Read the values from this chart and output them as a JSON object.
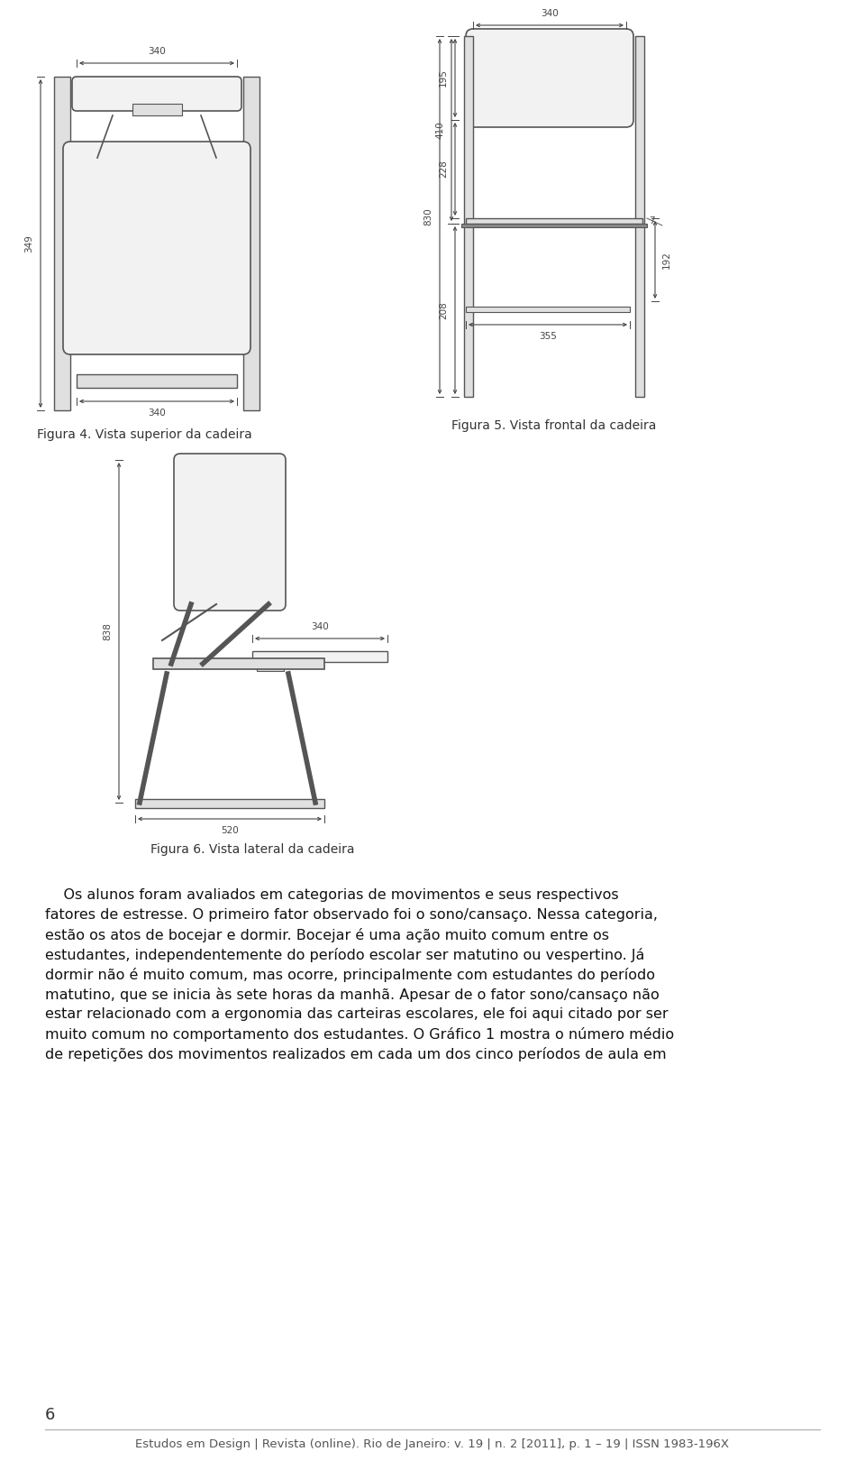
{
  "background_color": "#ffffff",
  "page_width": 9.6,
  "page_height": 16.3,
  "fig4_caption": "Figura 4. Vista superior da cadeira",
  "fig5_caption": "Figura 5. Vista frontal da cadeira",
  "fig6_caption": "Figura 6. Vista lateral da cadeira",
  "page_number": "6",
  "footer_text": "Estudos em Design | Revista (online). Rio de Janeiro: v. 19 | n. 2 [2011], p. 1 – 19 | ISSN 1983-196X",
  "body_lines": [
    "    Os alunos foram avaliados em categorias de movimentos e seus respectivos",
    "fatores de estresse. O primeiro fator observado foi o sono/cansaço. Nessa categoria,",
    "estão os atos de bocejar e dormir. Bocejar é uma ação muito comum entre os",
    "estudantes, independentemente do período escolar ser matutino ou vespertino. Já",
    "dormir não é muito comum, mas ocorre, principalmente com estudantes do período",
    "matutino, que se inicia às sete horas da manhã. Apesar de o fator sono/cansaço não",
    "estar relacionado com a ergonomia das carteiras escolares, ele foi aqui citado por ser",
    "muito comum no comportamento dos estudantes. O Gráfico 1 mostra o número médio",
    "de repetições dos movimentos realizados em cada um dos cinco períodos de aula em"
  ],
  "text_fontsize": 11.5,
  "caption_fontsize": 10,
  "footer_fontsize": 9.5,
  "dim_fontsize": 7.5,
  "dim_color": "#444444",
  "line_color": "#555555",
  "face_light": "#f2f2f2",
  "face_med": "#e0e0e0",
  "face_dark": "#888888"
}
